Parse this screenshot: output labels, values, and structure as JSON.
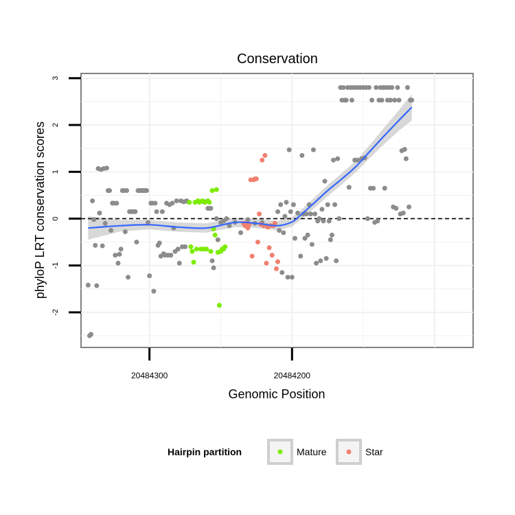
{
  "chart_data": {
    "type": "scatter",
    "title": "Conservation",
    "xlabel": "Genomic Position",
    "ylabel": "phyloP LRT conservation scores",
    "x_reversed": true,
    "xlim": [
      20484348,
      20484073
    ],
    "ylim": [
      -2.75,
      3.1
    ],
    "x_ticks": [
      20484300,
      20484200
    ],
    "x_tick_labels": [
      "20484300",
      "20484200"
    ],
    "y_ticks": [
      -2,
      -1,
      0,
      1,
      2,
      3
    ],
    "y_tick_labels": [
      "-2",
      "-1",
      "0",
      "1",
      "2",
      "3"
    ],
    "grid": true,
    "reference_line": {
      "y": 0,
      "style": "dashed",
      "color": "#000000"
    },
    "legend": {
      "title": "Hairpin partition",
      "position": "bottom",
      "entries": [
        {
          "label": "Mature",
          "color": "#7cec00"
        },
        {
          "label": "Star",
          "color": "#f08070"
        }
      ]
    },
    "colors": {
      "other": "#8c8c8c",
      "mature": "#7cec00",
      "star": "#f08070",
      "smooth": "#3366ff",
      "ribbon": "#c8c8c8"
    },
    "series": [
      {
        "group": "other",
        "points": [
          [
            20484343,
            -1.42
          ],
          [
            20484342,
            -2.5
          ],
          [
            20484341,
            -2.47
          ],
          [
            20484340,
            0.38
          ],
          [
            20484339,
            -0.02
          ],
          [
            20484338,
            -0.57
          ],
          [
            20484337,
            -1.43
          ],
          [
            20484336,
            1.07
          ],
          [
            20484335,
            0.12
          ],
          [
            20484334,
            1.05
          ],
          [
            20484333,
            -0.58
          ],
          [
            20484332,
            1.07
          ],
          [
            20484331,
            -0.1
          ],
          [
            20484330,
            1.08
          ],
          [
            20484329,
            0.6
          ],
          [
            20484328,
            0.6
          ],
          [
            20484327,
            -0.25
          ],
          [
            20484326,
            0.33
          ],
          [
            20484325,
            0.33
          ],
          [
            20484324,
            -0.78
          ],
          [
            20484323,
            0.33
          ],
          [
            20484322,
            -0.95
          ],
          [
            20484321,
            -0.76
          ],
          [
            20484320,
            -0.65
          ],
          [
            20484319,
            0.6
          ],
          [
            20484318,
            0.6
          ],
          [
            20484317,
            -0.28
          ],
          [
            20484316,
            0.6
          ],
          [
            20484315,
            -1.25
          ],
          [
            20484314,
            0.15
          ],
          [
            20484313,
            0.15
          ],
          [
            20484312,
            0.15
          ],
          [
            20484311,
            0.15
          ],
          [
            20484310,
            0.15
          ],
          [
            20484309,
            -0.5
          ],
          [
            20484308,
            0.6
          ],
          [
            20484307,
            0.6
          ],
          [
            20484306,
            0.6
          ],
          [
            20484305,
            0.6
          ],
          [
            20484304,
            0.6
          ],
          [
            20484303,
            0.6
          ],
          [
            20484302,
            0.6
          ],
          [
            20484301,
            -0.08
          ],
          [
            20484300,
            -1.22
          ],
          [
            20484299,
            0.33
          ],
          [
            20484298,
            0.33
          ],
          [
            20484297,
            -1.55
          ],
          [
            20484296,
            0.33
          ],
          [
            20484295,
            0.15
          ],
          [
            20484294,
            -0.57
          ],
          [
            20484293,
            -0.52
          ],
          [
            20484292,
            -0.8
          ],
          [
            20484291,
            0.15
          ],
          [
            20484290,
            -0.75
          ],
          [
            20484289,
            -0.78
          ],
          [
            20484288,
            0.33
          ],
          [
            20484287,
            -0.78
          ],
          [
            20484286,
            0.3
          ],
          [
            20484285,
            -0.78
          ],
          [
            20484284,
            0.33
          ],
          [
            20484283,
            -0.2
          ],
          [
            20484282,
            -0.7
          ],
          [
            20484281,
            0.38
          ],
          [
            20484280,
            -0.65
          ],
          [
            20484279,
            -0.95
          ],
          [
            20484278,
            0.38
          ],
          [
            20484277,
            -0.6
          ],
          [
            20484276,
            0.36
          ],
          [
            20484275,
            -0.6
          ],
          [
            20484274,
            0.38
          ],
          [
            20484273,
            0.36
          ],
          [
            20484262,
            0.36
          ],
          [
            20484261,
            0.36
          ],
          [
            20484259,
            0.22
          ],
          [
            20484258,
            0.22
          ],
          [
            20484257,
            0.22
          ],
          [
            20484256,
            -0.9
          ],
          [
            20484255,
            -1.05
          ],
          [
            20484253,
            0.0
          ],
          [
            20484252,
            -0.45
          ],
          [
            20484250,
            -0.08
          ],
          [
            20484248,
            -0.05
          ],
          [
            20484246,
            0.0
          ],
          [
            20484244,
            -0.15
          ],
          [
            20484240,
            -0.08
          ],
          [
            20484236,
            -0.3
          ],
          [
            20484231,
            -0.02
          ],
          [
            20484226,
            -0.1
          ],
          [
            20484221,
            -0.08
          ],
          [
            20484218,
            -0.15
          ],
          [
            20484210,
            0.15
          ],
          [
            20484209,
            -0.25
          ],
          [
            20484208,
            0.3
          ],
          [
            20484207,
            -1.15
          ],
          [
            20484206,
            -0.3
          ],
          [
            20484205,
            0.05
          ],
          [
            20484204,
            0.35
          ],
          [
            20484203,
            -1.25
          ],
          [
            20484202,
            1.47
          ],
          [
            20484201,
            0.15
          ],
          [
            20484200,
            -1.25
          ],
          [
            20484199,
            0.3
          ],
          [
            20484198,
            -0.42
          ],
          [
            20484196,
            0.12
          ],
          [
            20484194,
            -0.8
          ],
          [
            20484193,
            1.35
          ],
          [
            20484192,
            0.1
          ],
          [
            20484191,
            -0.42
          ],
          [
            20484190,
            0.1
          ],
          [
            20484189,
            -0.35
          ],
          [
            20484188,
            0.3
          ],
          [
            20484187,
            0.1
          ],
          [
            20484186,
            -0.55
          ],
          [
            20484185,
            1.47
          ],
          [
            20484184,
            0.1
          ],
          [
            20484183,
            -0.95
          ],
          [
            20484182,
            -0.05
          ],
          [
            20484181,
            0.0
          ],
          [
            20484180,
            -0.9
          ],
          [
            20484179,
            0.2
          ],
          [
            20484178,
            -0.05
          ],
          [
            20484177,
            0.8
          ],
          [
            20484176,
            -0.85
          ],
          [
            20484175,
            0.3
          ],
          [
            20484174,
            -0.05
          ],
          [
            20484173,
            -0.45
          ],
          [
            20484172,
            -0.35
          ],
          [
            20484171,
            1.25
          ],
          [
            20484170,
            0.3
          ],
          [
            20484169,
            -0.9
          ],
          [
            20484168,
            1.28
          ],
          [
            20484167,
            0.0
          ],
          [
            20484166,
            2.8
          ],
          [
            20484165,
            2.53
          ],
          [
            20484164,
            2.8
          ],
          [
            20484163,
            2.53
          ],
          [
            20484162,
            2.53
          ],
          [
            20484161,
            2.8
          ],
          [
            20484160,
            0.67
          ],
          [
            20484159,
            2.8
          ],
          [
            20484158,
            2.53
          ],
          [
            20484157,
            2.8
          ],
          [
            20484156,
            1.25
          ],
          [
            20484155,
            2.8
          ],
          [
            20484154,
            1.25
          ],
          [
            20484153,
            2.8
          ],
          [
            20484152,
            2.8
          ],
          [
            20484151,
            1.28
          ],
          [
            20484150,
            2.8
          ],
          [
            20484149,
            1.3
          ],
          [
            20484148,
            2.8
          ],
          [
            20484147,
            0.0
          ],
          [
            20484146,
            2.8
          ],
          [
            20484145,
            0.65
          ],
          [
            20484144,
            2.53
          ],
          [
            20484143,
            0.65
          ],
          [
            20484142,
            -0.08
          ],
          [
            20484141,
            2.8
          ],
          [
            20484140,
            -0.05
          ],
          [
            20484139,
            2.53
          ],
          [
            20484138,
            2.8
          ],
          [
            20484137,
            2.53
          ],
          [
            20484136,
            2.8
          ],
          [
            20484135,
            0.65
          ],
          [
            20484134,
            2.8
          ],
          [
            20484133,
            2.53
          ],
          [
            20484132,
            2.8
          ],
          [
            20484131,
            2.53
          ],
          [
            20484130,
            2.8
          ],
          [
            20484129,
            0.25
          ],
          [
            20484128,
            2.53
          ],
          [
            20484127,
            0.22
          ],
          [
            20484126,
            2.8
          ],
          [
            20484125,
            2.53
          ],
          [
            20484124,
            0.1
          ],
          [
            20484123,
            1.45
          ],
          [
            20484122,
            0.12
          ],
          [
            20484121,
            1.48
          ],
          [
            20484120,
            1.28
          ],
          [
            20484119,
            2.8
          ],
          [
            20484118,
            0.25
          ],
          [
            20484117,
            2.53
          ],
          [
            20484116,
            2.53
          ]
        ]
      },
      {
        "group": "Mature",
        "points": [
          [
            20484272,
            0.35
          ],
          [
            20484271,
            -0.6
          ],
          [
            20484270,
            -0.7
          ],
          [
            20484269,
            -0.93
          ],
          [
            20484268,
            0.35
          ],
          [
            20484267,
            -0.65
          ],
          [
            20484266,
            0.38
          ],
          [
            20484265,
            0.35
          ],
          [
            20484264,
            -0.65
          ],
          [
            20484263,
            0.38
          ],
          [
            20484262,
            -0.65
          ],
          [
            20484261,
            0.35
          ],
          [
            20484260,
            -0.65
          ],
          [
            20484259,
            0.38
          ],
          [
            20484258,
            0.35
          ],
          [
            20484257,
            -0.7
          ],
          [
            20484256,
            0.6
          ],
          [
            20484255,
            -0.22
          ],
          [
            20484254,
            -0.35
          ],
          [
            20484253,
            0.62
          ],
          [
            20484252,
            -0.72
          ],
          [
            20484251,
            -1.85
          ],
          [
            20484250,
            -0.7
          ],
          [
            20484249,
            -0.65
          ],
          [
            20484248,
            -0.65
          ],
          [
            20484247,
            -0.6
          ]
        ]
      },
      {
        "group": "Star",
        "points": [
          [
            20484234,
            -0.1
          ],
          [
            20484233,
            -0.15
          ],
          [
            20484232,
            -0.1
          ],
          [
            20484231,
            -0.2
          ],
          [
            20484230,
            -0.12
          ],
          [
            20484229,
            0.83
          ],
          [
            20484228,
            -0.8
          ],
          [
            20484227,
            0.83
          ],
          [
            20484226,
            0.85
          ],
          [
            20484225,
            0.85
          ],
          [
            20484224,
            -0.5
          ],
          [
            20484223,
            0.1
          ],
          [
            20484222,
            -0.12
          ],
          [
            20484221,
            1.25
          ],
          [
            20484220,
            -0.15
          ],
          [
            20484219,
            1.35
          ],
          [
            20484218,
            -0.95
          ],
          [
            20484217,
            -0.18
          ],
          [
            20484216,
            -0.62
          ],
          [
            20484215,
            -0.15
          ],
          [
            20484214,
            -0.78
          ],
          [
            20484213,
            -0.15
          ],
          [
            20484212,
            -0.1
          ],
          [
            20484211,
            -1.07
          ],
          [
            20484210,
            -0.92
          ]
        ]
      }
    ],
    "smooth": {
      "x": [
        20484343,
        20484330,
        20484320,
        20484300,
        20484280,
        20484260,
        20484240,
        20484225,
        20484210,
        20484200,
        20484195,
        20484185,
        20484175,
        20484165,
        20484155,
        20484145,
        20484135,
        20484125,
        20484116
      ],
      "y": [
        -0.2,
        -0.17,
        -0.15,
        -0.13,
        -0.18,
        -0.2,
        -0.08,
        -0.1,
        -0.15,
        -0.07,
        0.05,
        0.32,
        0.6,
        0.85,
        1.12,
        1.45,
        1.78,
        2.1,
        2.38
      ],
      "se": [
        0.25,
        0.18,
        0.12,
        0.1,
        0.1,
        0.1,
        0.1,
        0.1,
        0.1,
        0.1,
        0.1,
        0.11,
        0.12,
        0.12,
        0.12,
        0.14,
        0.18,
        0.22,
        0.28
      ]
    }
  }
}
